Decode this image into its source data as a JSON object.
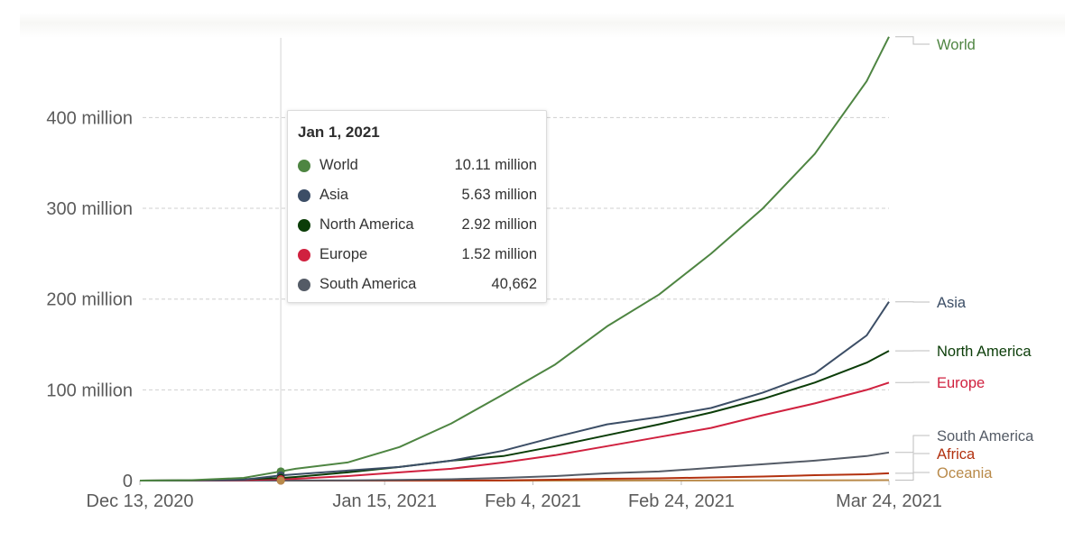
{
  "chart_data": {
    "type": "line",
    "title": "",
    "xlabel": "",
    "ylabel": "",
    "x_start": "2020-12-13",
    "x_end": "2021-03-24",
    "x_day_offsets": [
      0,
      7,
      14,
      19,
      21,
      28,
      35,
      42,
      49,
      56,
      63,
      70,
      77,
      84,
      91,
      98,
      101
    ],
    "x_tick_labels": [
      {
        "label": "Dec 13, 2020",
        "day": 0
      },
      {
        "label": "Jan 15, 2021",
        "day": 33
      },
      {
        "label": "Feb 4, 2021",
        "day": 53
      },
      {
        "label": "Feb 24, 2021",
        "day": 73
      },
      {
        "label": "Mar 24, 2021",
        "day": 101
      }
    ],
    "y_unit": "million",
    "ylim": [
      0,
      490
    ],
    "y_ticks": [
      {
        "value": 0,
        "label": "0"
      },
      {
        "value": 100,
        "label": "100 million"
      },
      {
        "value": 200,
        "label": "200 million"
      },
      {
        "value": 300,
        "label": "300 million"
      },
      {
        "value": 400,
        "label": "400 million"
      }
    ],
    "grid": "horizontal-dashed",
    "legend_placement": "right-inline-labels",
    "series": [
      {
        "name": "World",
        "color": "#4e8542",
        "values": [
          0,
          0.5,
          3,
          10.11,
          13,
          20,
          37,
          63,
          95,
          128,
          170,
          205,
          250,
          300,
          360,
          440,
          489
        ]
      },
      {
        "name": "Asia",
        "color": "#3c4e66",
        "values": [
          0,
          0.2,
          1,
          5.63,
          7,
          11,
          15,
          22,
          33,
          48,
          62,
          70,
          80,
          97,
          118,
          160,
          197
        ]
      },
      {
        "name": "North America",
        "color": "#0b3d08",
        "values": [
          0,
          0.2,
          1.5,
          2.92,
          4,
          9,
          15,
          22,
          27,
          38,
          50,
          62,
          75,
          90,
          108,
          130,
          143
        ]
      },
      {
        "name": "Europe",
        "color": "#d0213f",
        "values": [
          0,
          0.1,
          0.5,
          1.52,
          2,
          5,
          9,
          13,
          20,
          28,
          38,
          48,
          58,
          72,
          85,
          100,
          108
        ]
      },
      {
        "name": "South America",
        "color": "#545b66",
        "values": [
          0,
          0,
          0,
          0.040662,
          0.1,
          0.3,
          0.8,
          1.5,
          3,
          5,
          8,
          10,
          14,
          18,
          22,
          27,
          31
        ]
      },
      {
        "name": "Africa",
        "color": "#b2310f",
        "values": [
          0,
          0,
          0,
          0,
          0,
          0,
          0,
          0.1,
          0.3,
          1,
          2,
          2.5,
          3.5,
          4.5,
          6,
          7,
          8
        ]
      },
      {
        "name": "Oceania",
        "color": "#b98a4a",
        "values": [
          0,
          0,
          0,
          0,
          0,
          0,
          0,
          0,
          0,
          0,
          0,
          0.05,
          0.1,
          0.15,
          0.25,
          0.4,
          0.5
        ]
      }
    ],
    "hover": {
      "date": "Jan 1, 2021",
      "day": 19,
      "rows": [
        {
          "name": "World",
          "value": "10.11 million",
          "color": "#4e8542"
        },
        {
          "name": "Asia",
          "value": "5.63 million",
          "color": "#3c4e66"
        },
        {
          "name": "North America",
          "value": "2.92 million",
          "color": "#0b3d08"
        },
        {
          "name": "Europe",
          "value": "1.52 million",
          "color": "#d0213f"
        },
        {
          "name": "South America",
          "value": "40,662",
          "color": "#545b66"
        }
      ]
    }
  }
}
